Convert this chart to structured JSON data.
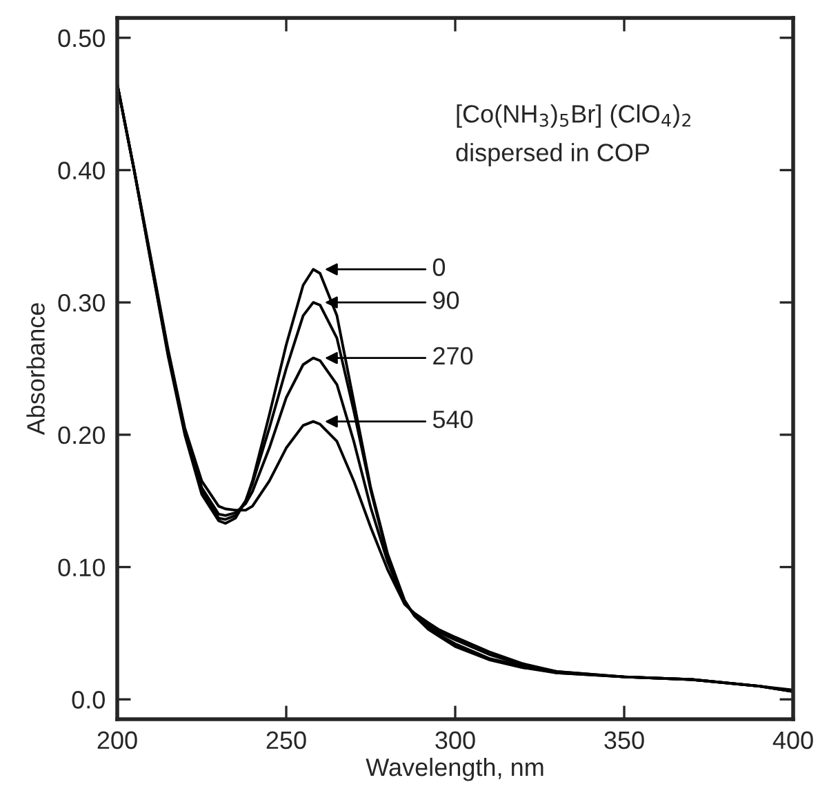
{
  "chart_data": {
    "type": "line",
    "xlabel": "Wavelength, nm",
    "ylabel": "Absorbance",
    "xlim": [
      200,
      400
    ],
    "xticks": [
      200,
      250,
      300,
      350,
      400
    ],
    "ylim": [
      -0.015,
      0.515
    ],
    "yticks": [
      {
        "value": 0.0,
        "label": "0.0"
      },
      {
        "value": 0.1,
        "label": "0.10"
      },
      {
        "value": 0.2,
        "label": "0.20"
      },
      {
        "value": 0.3,
        "label": "0.30"
      },
      {
        "value": 0.4,
        "label": "0.40"
      },
      {
        "value": 0.5,
        "label": "0.50"
      }
    ],
    "grid": false,
    "legend": "center",
    "marker": "none",
    "line_style": "solid",
    "x": [
      200,
      205,
      210,
      215,
      220,
      225,
      230,
      232,
      235,
      238,
      240,
      245,
      250,
      255,
      258,
      260,
      265,
      270,
      275,
      280,
      285,
      288,
      292,
      295,
      300,
      310,
      320,
      330,
      350,
      370,
      390,
      400
    ],
    "series": [
      {
        "name": "0",
        "color": "#000000",
        "values": [
          0.465,
          0.4,
          0.33,
          0.26,
          0.2,
          0.155,
          0.135,
          0.133,
          0.137,
          0.15,
          0.165,
          0.215,
          0.268,
          0.313,
          0.325,
          0.322,
          0.29,
          0.225,
          0.16,
          0.11,
          0.075,
          0.063,
          0.053,
          0.048,
          0.04,
          0.03,
          0.024,
          0.02,
          0.017,
          0.015,
          0.01,
          0.006
        ]
      },
      {
        "name": "90",
        "color": "#000000",
        "values": [
          0.465,
          0.4,
          0.33,
          0.262,
          0.202,
          0.157,
          0.137,
          0.136,
          0.139,
          0.15,
          0.163,
          0.205,
          0.25,
          0.29,
          0.3,
          0.298,
          0.273,
          0.218,
          0.158,
          0.108,
          0.074,
          0.063,
          0.054,
          0.049,
          0.042,
          0.031,
          0.025,
          0.02,
          0.017,
          0.015,
          0.01,
          0.006
        ]
      },
      {
        "name": "270",
        "color": "#000000",
        "values": [
          0.465,
          0.4,
          0.332,
          0.263,
          0.203,
          0.16,
          0.14,
          0.139,
          0.141,
          0.148,
          0.157,
          0.19,
          0.228,
          0.253,
          0.258,
          0.256,
          0.238,
          0.195,
          0.145,
          0.104,
          0.073,
          0.064,
          0.056,
          0.051,
          0.045,
          0.034,
          0.026,
          0.021,
          0.017,
          0.015,
          0.01,
          0.006
        ]
      },
      {
        "name": "540",
        "color": "#000000",
        "values": [
          0.465,
          0.4,
          0.333,
          0.265,
          0.205,
          0.165,
          0.146,
          0.144,
          0.143,
          0.143,
          0.146,
          0.165,
          0.19,
          0.207,
          0.21,
          0.208,
          0.195,
          0.165,
          0.13,
          0.098,
          0.072,
          0.065,
          0.058,
          0.053,
          0.047,
          0.036,
          0.027,
          0.021,
          0.017,
          0.015,
          0.01,
          0.007
        ]
      }
    ],
    "annotations": [
      "[Co(NH$_{3}$)$_{5}$Br] (ClO$_{4}$)$_{2}$",
      "dispersed in COP"
    ]
  }
}
